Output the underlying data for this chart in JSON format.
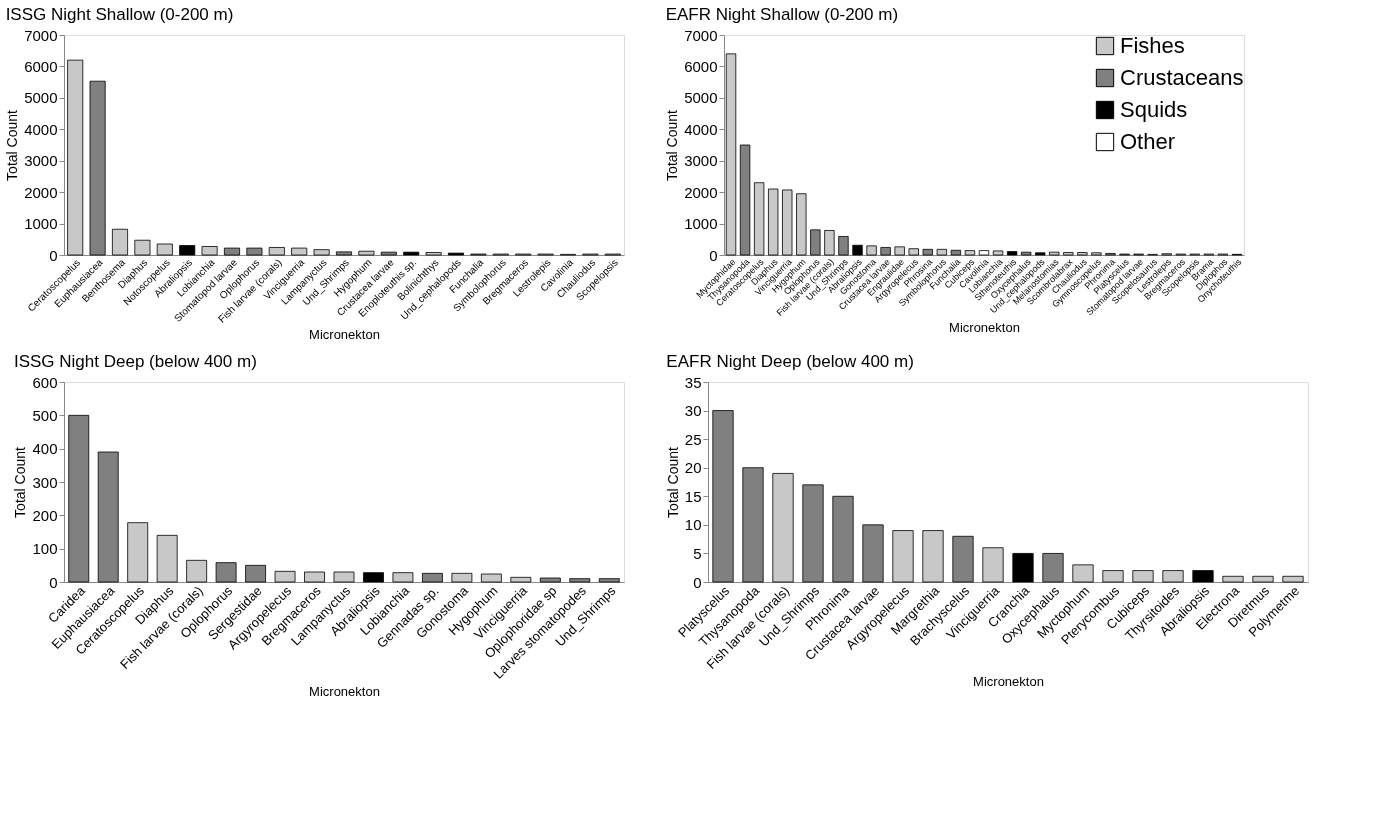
{
  "chart_data": [
    {
      "type": "bar",
      "title": "ISSG Night Shallow (0-200 m)",
      "xlabel": "Micronekton",
      "ylabel": "Total Count",
      "ylim": [
        0,
        7000
      ],
      "yticks": [
        0,
        1000,
        2000,
        3000,
        4000,
        5000,
        6000,
        7000
      ],
      "grid": false,
      "legend": false,
      "categories": [
        "Ceratoscopelus",
        "Euphausiacea",
        "Benthosema",
        "Diaphus",
        "Notoscopelus",
        "Abraliopsis",
        "Lobianchia",
        "Stomatopod larvae",
        "Oplophorus",
        "Fish larvae (corals)",
        "Vinciguerria",
        "Lampanyctus",
        "Und_Shrimps",
        "Hygophum",
        "Crustacea larvae",
        "Enoploteuthis sp.",
        "Bolinichthys",
        "Und_cephalopods",
        "Funchalia",
        "Symbolophorus",
        "Bregmaceros",
        "Lestrolepis",
        "Cavolinia",
        "Chauliodus",
        "Scopelopsis"
      ],
      "series": [
        {
          "color": "#c8c8c8",
          "values": [
            6200,
            null,
            820,
            470,
            350,
            null,
            270,
            null,
            null,
            240,
            220,
            170,
            null,
            120,
            null,
            null,
            80,
            null,
            null,
            30,
            30,
            30,
            null,
            30,
            30
          ]
        },
        {
          "color": "#808080",
          "values": [
            null,
            5530,
            null,
            null,
            null,
            null,
            null,
            220,
            220,
            null,
            null,
            null,
            100,
            null,
            90,
            null,
            null,
            null,
            30,
            null,
            null,
            null,
            null,
            null,
            null
          ]
        },
        {
          "color": "#000000",
          "values": [
            null,
            null,
            null,
            null,
            null,
            300,
            null,
            null,
            null,
            null,
            null,
            null,
            null,
            null,
            null,
            90,
            null,
            60,
            null,
            null,
            null,
            null,
            null,
            null,
            null
          ]
        },
        {
          "color": "#ffffff",
          "values": [
            null,
            null,
            null,
            null,
            null,
            null,
            null,
            null,
            null,
            null,
            null,
            null,
            null,
            null,
            null,
            null,
            null,
            null,
            null,
            null,
            null,
            null,
            20,
            null,
            null
          ]
        }
      ]
    },
    {
      "type": "bar",
      "title": "EAFR Night Shallow (0-200 m)",
      "xlabel": "Micronekton",
      "ylabel": "Total Count",
      "ylim": [
        0,
        7000
      ],
      "yticks": [
        0,
        1000,
        2000,
        3000,
        4000,
        5000,
        6000,
        7000
      ],
      "grid": false,
      "legend": "top right",
      "categories": [
        "Myctophidae",
        "Thysanopoda",
        "Ceratoscopelus",
        "Diaphus",
        "Vinciguerria",
        "Hygophum",
        "Oplophorus",
        "Fish larvae (corals)",
        "Und_Shrimps",
        "Abraliopsis",
        "Gonostoma",
        "Crustacea larvae",
        "Engraulidae",
        "Argyropelecus",
        "Phrosina",
        "Symbolophorus",
        "Funchalia",
        "Cubiceps",
        "Cavolinia",
        "Lobianchia",
        "Sthenoteuthis",
        "Oxycephalus",
        "Und_cephalopods",
        "Melanostomias",
        "Scombrolabrax",
        "Chauliodus",
        "Gymnoscopelus",
        "Phronima",
        "Platyscelus",
        "Stomatopod larvae",
        "Scopelosaurus",
        "Lestrolepis",
        "Bregmaceros",
        "Scopelopsis",
        "Brama",
        "Diplophos",
        "Onychoteuthis"
      ],
      "series": [
        {
          "name": "Fishes",
          "color": "#c8c8c8",
          "values": [
            6400,
            null,
            2300,
            2100,
            2070,
            1950,
            null,
            780,
            null,
            null,
            290,
            null,
            260,
            200,
            null,
            180,
            null,
            140,
            null,
            130,
            null,
            null,
            null,
            90,
            80,
            80,
            70,
            null,
            null,
            null,
            20,
            40,
            30,
            30,
            30,
            30,
            null
          ]
        },
        {
          "name": "Crustaceans",
          "color": "#808080",
          "values": [
            null,
            3500,
            null,
            null,
            null,
            null,
            800,
            null,
            590,
            null,
            null,
            240,
            null,
            null,
            180,
            null,
            150,
            null,
            null,
            null,
            null,
            90,
            null,
            null,
            null,
            null,
            null,
            50,
            30,
            30,
            null,
            null,
            null,
            null,
            null,
            null,
            null
          ]
        },
        {
          "name": "Squids",
          "color": "#000000",
          "values": [
            null,
            null,
            null,
            null,
            null,
            null,
            null,
            null,
            null,
            310,
            null,
            null,
            null,
            null,
            null,
            null,
            null,
            null,
            null,
            null,
            110,
            null,
            70,
            null,
            null,
            null,
            null,
            null,
            null,
            null,
            null,
            null,
            null,
            null,
            null,
            null,
            20
          ]
        },
        {
          "name": "Other",
          "color": "#ffffff",
          "values": [
            null,
            null,
            null,
            null,
            null,
            null,
            null,
            null,
            null,
            null,
            null,
            null,
            null,
            null,
            null,
            null,
            null,
            null,
            140,
            null,
            null,
            null,
            null,
            null,
            null,
            null,
            null,
            null,
            null,
            null,
            null,
            null,
            null,
            null,
            null,
            null,
            null
          ]
        }
      ]
    },
    {
      "type": "bar",
      "title": "ISSG Night Deep (below 400 m)",
      "xlabel": "Micronekton",
      "ylabel": "Total Count",
      "ylim": [
        0,
        600
      ],
      "yticks": [
        0,
        100,
        200,
        300,
        400,
        500,
        600
      ],
      "grid": false,
      "legend": false,
      "categories": [
        "Caridea",
        "Euphausiacea",
        "Ceratoscopelus",
        "Diaphus",
        "Fish larvae (corals)",
        "Oplophorus",
        "Sergestidae",
        "Argyropelecus",
        "Bregmaceros",
        "Lampanyctus",
        "Abraliopsis",
        "Lobianchia",
        "Gennadas sp.",
        "Gonostoma",
        "Hygophum",
        "Vinciguerria",
        "Oplophoridae sp",
        "Larves stomatopodes",
        "Und_Shrimps"
      ],
      "series": [
        {
          "color": "#c8c8c8",
          "values": [
            null,
            null,
            178,
            140,
            65,
            null,
            null,
            32,
            30,
            30,
            null,
            28,
            null,
            26,
            24,
            14,
            null,
            null,
            null
          ]
        },
        {
          "color": "#808080",
          "values": [
            500,
            390,
            null,
            null,
            null,
            58,
            50,
            null,
            null,
            null,
            null,
            null,
            26,
            null,
            null,
            null,
            12,
            10,
            10
          ]
        },
        {
          "color": "#000000",
          "values": [
            null,
            null,
            null,
            null,
            null,
            null,
            null,
            null,
            null,
            null,
            28,
            null,
            null,
            null,
            null,
            null,
            null,
            null,
            null
          ]
        }
      ]
    },
    {
      "type": "bar",
      "title": "EAFR Night Deep (below 400 m)",
      "xlabel": "Micronekton",
      "ylabel": "Total Count",
      "ylim": [
        0,
        35
      ],
      "yticks": [
        0,
        5,
        10,
        15,
        20,
        25,
        30,
        35
      ],
      "grid": false,
      "legend": false,
      "categories": [
        "Platyscelus",
        "Thysanopoda",
        "Fish larvae (corals)",
        "Und_Shrimps",
        "Phronima",
        "Crustacea larvae",
        "Argyropelecus",
        "Margrethia",
        "Brachyscelus",
        "Vinciguerria",
        "Cranchia",
        "Oxycephalus",
        "Myctophum",
        "Pterycombus",
        "Cubiceps",
        "Thyrsitoides",
        "Abraliopsis",
        "Electrona",
        "Diretmus",
        "Polymetme"
      ],
      "series": [
        {
          "color": "#c8c8c8",
          "values": [
            null,
            null,
            19,
            null,
            null,
            null,
            9,
            9,
            null,
            6,
            null,
            null,
            3,
            2,
            2,
            2,
            null,
            1,
            1,
            1
          ]
        },
        {
          "color": "#808080",
          "values": [
            30,
            20,
            null,
            17,
            15,
            10,
            null,
            null,
            8,
            null,
            null,
            5,
            null,
            null,
            null,
            null,
            null,
            null,
            null,
            null
          ]
        },
        {
          "color": "#000000",
          "values": [
            null,
            null,
            null,
            null,
            null,
            null,
            null,
            null,
            null,
            null,
            5,
            null,
            null,
            null,
            null,
            null,
            2,
            null,
            null,
            null
          ]
        }
      ]
    }
  ]
}
